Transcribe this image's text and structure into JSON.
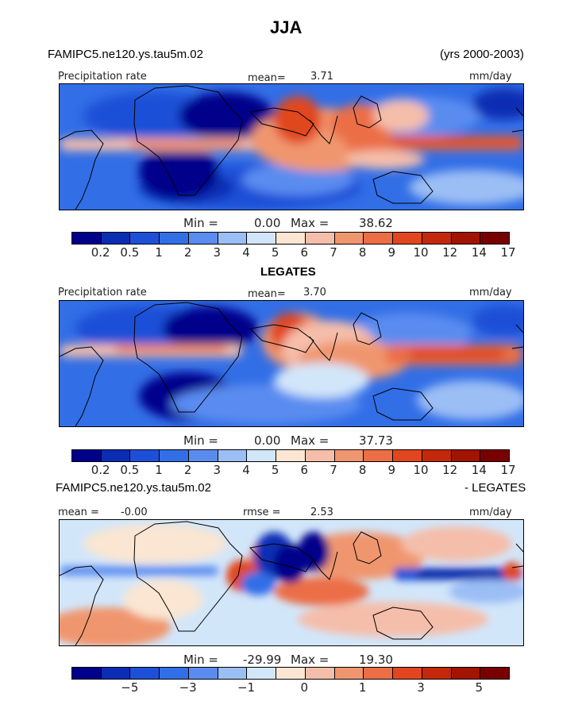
{
  "title": "JJA",
  "panel1": {
    "case_name": "FAMIPC5.ne120.ys.tau5m.02",
    "years": "(yrs 2000-2003)",
    "variable": "Precipitation rate",
    "mean_label": "mean=",
    "mean_value": "3.71",
    "units": "mm/day",
    "min_label": "Min =",
    "min_value": "0.00",
    "max_label": "Max =",
    "max_value": "38.62"
  },
  "panel2": {
    "case_name": "LEGATES",
    "variable": "Precipitation rate",
    "mean_label": "mean=",
    "mean_value": "3.70",
    "units": "mm/day",
    "min_label": "Min =",
    "min_value": "0.00",
    "max_label": "Max =",
    "max_value": "37.73"
  },
  "panel3": {
    "case_name": "FAMIPC5.ne120.ys.tau5m.02",
    "case_name_right": "- LEGATES",
    "mean_label": "mean =",
    "mean_value": "-0.00",
    "rmse_label": "rmse =",
    "rmse_value": "2.53",
    "units": "mm/day",
    "min_label": "Min =",
    "min_value": "-29.99",
    "max_label": "Max =",
    "max_value": "19.30"
  },
  "colorbar_abs": {
    "colors": [
      "#00008b",
      "#0a2db4",
      "#1e50d7",
      "#326ee6",
      "#5a8cf0",
      "#9bbef5",
      "#d2e6fa",
      "#fae6d2",
      "#f5beaa",
      "#f0966e",
      "#eb6e46",
      "#e1461e",
      "#c3280a",
      "#a01400",
      "#780000"
    ],
    "tick_labels": [
      "0.2",
      "0.5",
      "1",
      "2",
      "3",
      "4",
      "5",
      "6",
      "7",
      "8",
      "9",
      "10",
      "12",
      "14",
      "17"
    ]
  },
  "colorbar_diff": {
    "colors": [
      "#00008b",
      "#0a2db4",
      "#1e50d7",
      "#326ee6",
      "#5a8cf0",
      "#9bbef5",
      "#d2e6fa",
      "#fae6d2",
      "#f5beaa",
      "#f0966e",
      "#eb6e46",
      "#e1461e",
      "#c3280a",
      "#a01400",
      "#780000"
    ],
    "tick_labels": [
      "-5",
      "-3",
      "-1",
      "0",
      "1",
      "3",
      "5"
    ]
  }
}
